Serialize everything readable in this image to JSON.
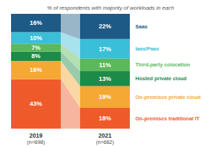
{
  "chart_data": {
    "type": "bar",
    "title": "% of respondents with majority of workloads in each",
    "categories": [
      "2019\n(n=698)",
      "2021\n(n=662)"
    ],
    "stacked": true,
    "data_labels": true,
    "tick_labels": "x",
    "legend": "right",
    "ylim": [
      0,
      100
    ],
    "series": [
      {
        "name": "On-premises traditional IT",
        "color": "#ee5a2a",
        "values": [
          43,
          18
        ],
        "value_labels": [
          "43%",
          "18%"
        ]
      },
      {
        "name": "On-premises private cloud",
        "color": "#f5a833",
        "values": [
          16,
          19
        ],
        "value_labels": [
          "16%",
          "19%"
        ]
      },
      {
        "name": "Hosted private cloud",
        "color": "#1e8a47",
        "values": [
          8,
          13
        ],
        "value_labels": [
          "8%",
          "13%"
        ]
      },
      {
        "name": "Third-party colocation",
        "color": "#5cb85c",
        "values": [
          7,
          11
        ],
        "value_labels": [
          "7%",
          "11%"
        ]
      },
      {
        "name": "Iaas/Paas",
        "color": "#3bbfd8",
        "values": [
          10,
          17
        ],
        "value_labels": [
          "10%",
          "17%"
        ]
      },
      {
        "name": "Saas",
        "color": "#1d5a86",
        "values": [
          16,
          22
        ],
        "value_labels": [
          "16%",
          "22%"
        ]
      }
    ]
  }
}
